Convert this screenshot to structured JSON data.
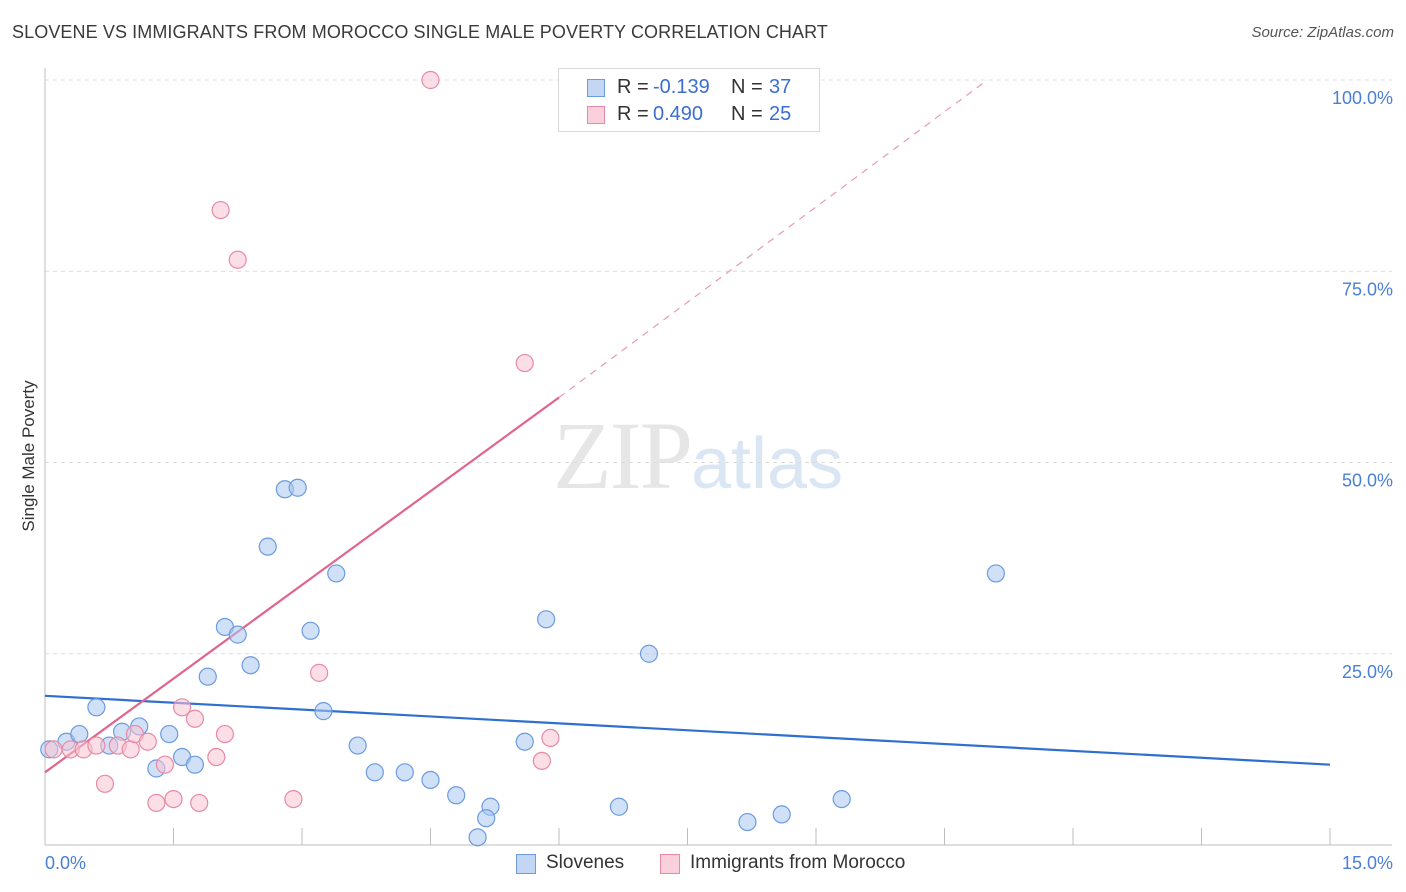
{
  "title": "SLOVENE VS IMMIGRANTS FROM MOROCCO SINGLE MALE POVERTY CORRELATION CHART",
  "source": "Source: ZipAtlas.com",
  "watermark": {
    "zip": "ZIP",
    "atlas": "atlas"
  },
  "legend": {
    "rows": [
      {
        "r_label": "R =",
        "r_value": "-0.139",
        "n_label": "N =",
        "n_value": "37",
        "color": "#a9c6f0",
        "border": "#6b9be0"
      },
      {
        "r_label": "R =",
        "r_value": "0.490",
        "n_label": "N =",
        "n_value": "25",
        "color": "#f8c3d2",
        "border": "#e88aa6"
      }
    ]
  },
  "bottom_legend": [
    {
      "label": "Slovenes",
      "color": "#a9c6f0",
      "border": "#6b9be0"
    },
    {
      "label": "Immigrants from Morocco",
      "color": "#f8c3d2",
      "border": "#e88aa6"
    }
  ],
  "chart_data": {
    "type": "scatter",
    "title": "SLOVENE VS IMMIGRANTS FROM MOROCCO SINGLE MALE POVERTY CORRELATION CHART",
    "xlabel": "",
    "ylabel": "Single Male Poverty",
    "xlim": [
      0,
      15
    ],
    "ylim": [
      0,
      100
    ],
    "x_tick_labels": [
      "0.0%",
      "15.0%"
    ],
    "y_ticks": [
      25,
      50,
      75,
      100
    ],
    "y_tick_labels": [
      "25.0%",
      "50.0%",
      "75.0%",
      "100.0%"
    ],
    "grid": true,
    "legend_position": "top-center",
    "series": [
      {
        "name": "Slovenes",
        "color": "#6b9be0",
        "fill": "#a9c6f0",
        "points": [
          [
            0.05,
            12.5
          ],
          [
            0.25,
            13.5
          ],
          [
            0.4,
            14.5
          ],
          [
            0.6,
            18.0
          ],
          [
            0.75,
            13.0
          ],
          [
            0.9,
            14.8
          ],
          [
            1.1,
            15.5
          ],
          [
            1.3,
            10.0
          ],
          [
            1.45,
            14.5
          ],
          [
            1.6,
            11.5
          ],
          [
            1.75,
            10.5
          ],
          [
            1.9,
            22.0
          ],
          [
            2.1,
            28.5
          ],
          [
            2.25,
            27.5
          ],
          [
            2.4,
            23.5
          ],
          [
            2.6,
            39.0
          ],
          [
            2.8,
            46.5
          ],
          [
            2.95,
            46.7
          ],
          [
            3.1,
            28.0
          ],
          [
            3.25,
            17.5
          ],
          [
            3.4,
            35.5
          ],
          [
            3.65,
            13.0
          ],
          [
            3.85,
            9.5
          ],
          [
            4.2,
            9.5
          ],
          [
            4.5,
            8.5
          ],
          [
            4.8,
            6.5
          ],
          [
            5.05,
            1.0
          ],
          [
            5.2,
            5.0
          ],
          [
            5.15,
            3.5
          ],
          [
            5.6,
            13.5
          ],
          [
            5.85,
            29.5
          ],
          [
            6.7,
            5.0
          ],
          [
            7.05,
            25.0
          ],
          [
            8.2,
            3.0
          ],
          [
            8.6,
            4.0
          ],
          [
            9.3,
            6.0
          ],
          [
            11.1,
            35.5
          ]
        ],
        "trend": {
          "x": [
            0,
            15
          ],
          "y": [
            19.5,
            10.5
          ],
          "style": "solid"
        }
      },
      {
        "name": "Immigrants from Morocco",
        "color": "#e88aa6",
        "fill": "#f8c3d2",
        "points": [
          [
            0.1,
            12.5
          ],
          [
            0.3,
            12.5
          ],
          [
            0.45,
            12.5
          ],
          [
            0.6,
            13.0
          ],
          [
            0.7,
            8.0
          ],
          [
            0.85,
            13.0
          ],
          [
            1.0,
            12.5
          ],
          [
            1.05,
            14.5
          ],
          [
            1.2,
            13.5
          ],
          [
            1.3,
            5.5
          ],
          [
            1.4,
            10.5
          ],
          [
            1.5,
            6.0
          ],
          [
            1.6,
            18.0
          ],
          [
            1.75,
            16.5
          ],
          [
            1.8,
            5.5
          ],
          [
            2.0,
            11.5
          ],
          [
            2.1,
            14.5
          ],
          [
            2.05,
            83.0
          ],
          [
            2.25,
            76.5
          ],
          [
            2.9,
            6.0
          ],
          [
            3.2,
            22.5
          ],
          [
            4.5,
            100.0
          ],
          [
            5.6,
            63.0
          ],
          [
            5.8,
            11.0
          ],
          [
            5.9,
            14.0
          ]
        ],
        "trend": {
          "x": [
            0,
            6.0,
            11.0
          ],
          "y": [
            9.5,
            58.5,
            100.0
          ],
          "style": "solid-then-dashed",
          "solid_until_x": 6.0
        }
      }
    ]
  }
}
